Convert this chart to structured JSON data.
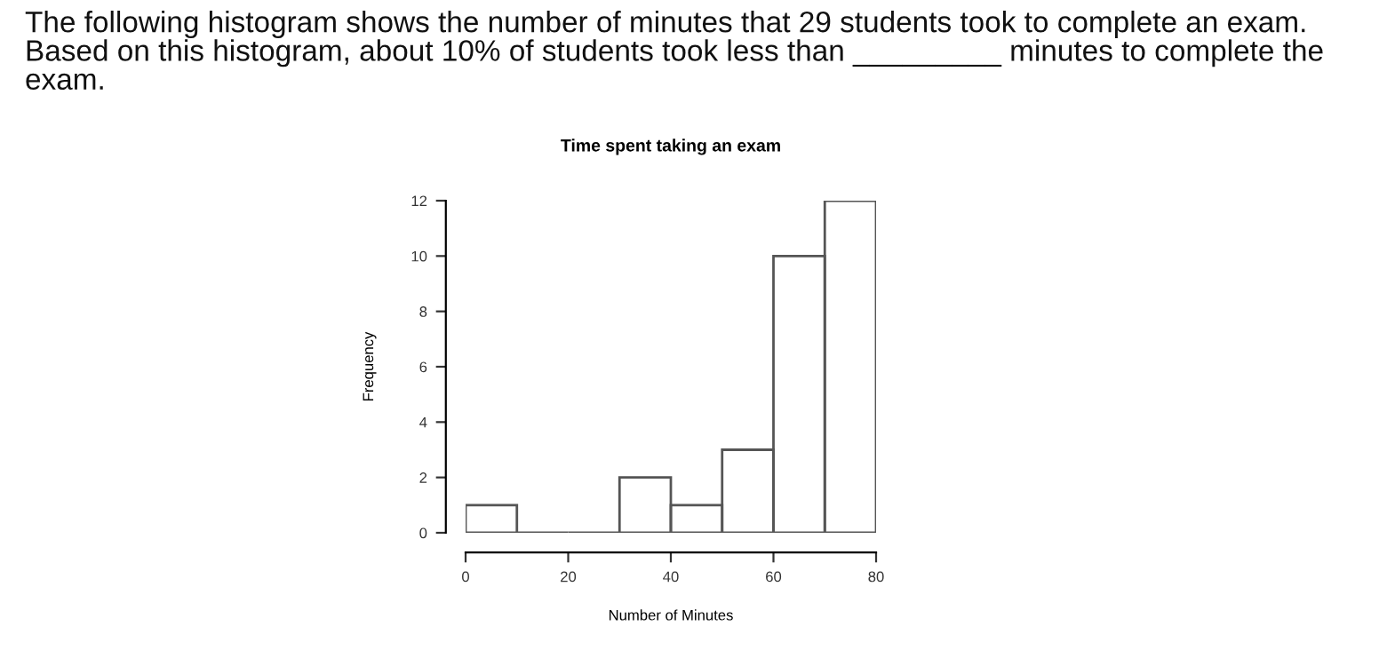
{
  "chart_data": {
    "type": "histogram",
    "title": "Time spent taking an exam",
    "xlabel": "Number of Minutes",
    "ylabel": "Frequency",
    "annotations": [
      "The following histogram shows the number of minutes that 29 students took to complete an exam.\nBased on this histogram, about 10% of students took less than _________ minutes to complete the\nexam."
    ],
    "bins": [
      0,
      10,
      20,
      30,
      40,
      50,
      60,
      70,
      80
    ],
    "values": [
      1,
      0,
      0,
      2,
      1,
      3,
      10,
      12
    ],
    "color": "#555555",
    "xlim": [
      0,
      80
    ],
    "xticks": [
      0,
      20,
      40,
      60,
      80
    ],
    "ylim": [
      0,
      12
    ],
    "yticks": [
      0,
      2,
      4,
      6,
      8,
      10,
      12
    ],
    "grid": false
  }
}
